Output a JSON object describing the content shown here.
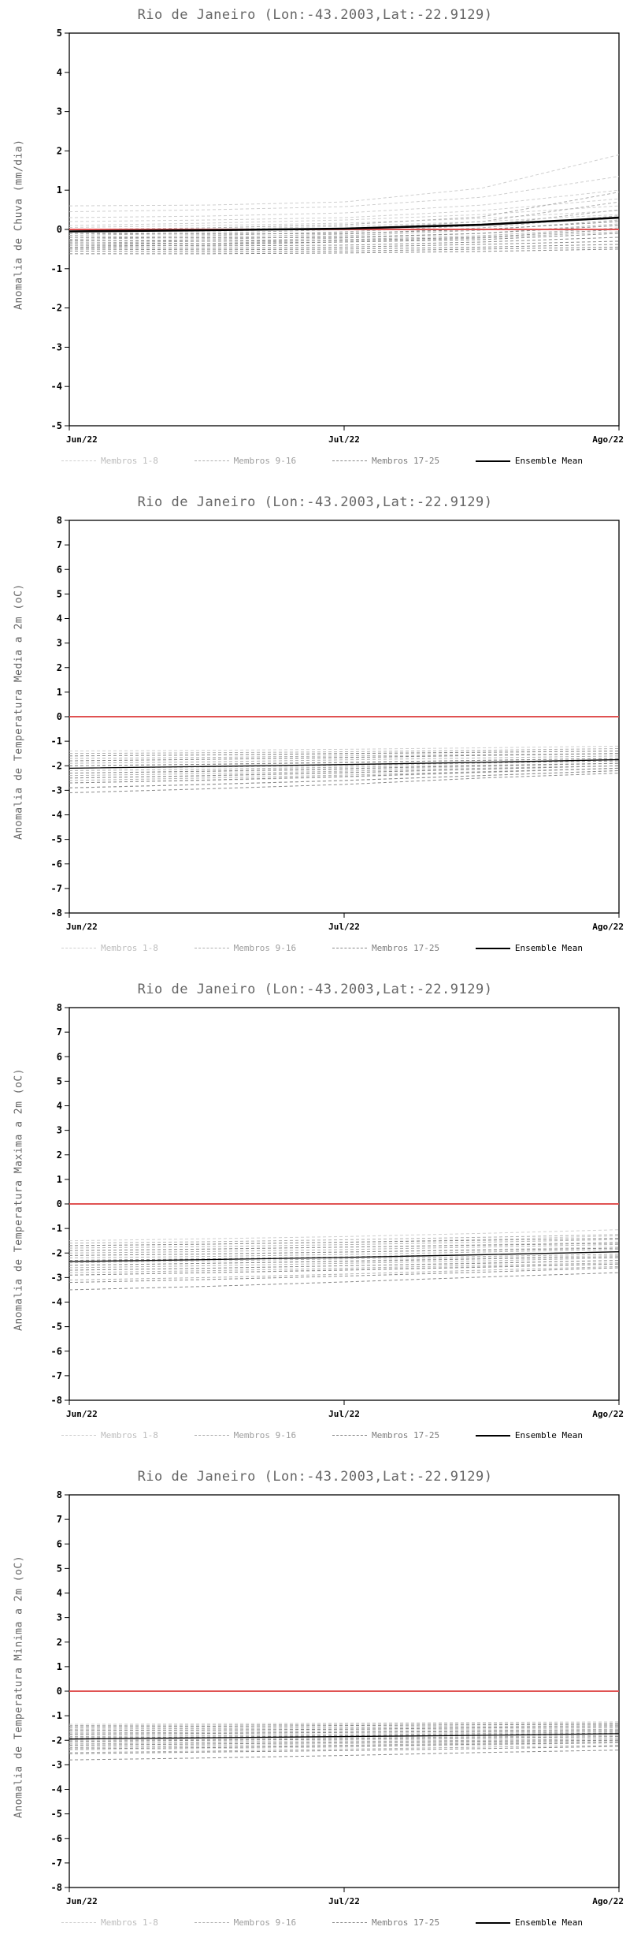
{
  "legend": [
    {
      "label": "Membros 1-8",
      "color": "#cfcfcf",
      "label_color": "#bdbdbd",
      "dashed": true
    },
    {
      "label": "Membros 9-16",
      "color": "#b0b0b0",
      "label_color": "#9e9e9e",
      "dashed": true
    },
    {
      "label": "Membros 17-25",
      "color": "#8a8a8a",
      "label_color": "#7c7c7c",
      "dashed": true
    },
    {
      "label": "Ensemble Mean",
      "color": "#000000",
      "label_color": "#000000",
      "dashed": false
    }
  ],
  "colors": {
    "zero_line": "#e05252",
    "axis": "#000000",
    "mean": "#000000",
    "member_groups": [
      "#cfcfcf",
      "#b0b0b0",
      "#8a8a8a"
    ]
  },
  "chart_data": [
    {
      "type": "line",
      "title": "Rio de Janeiro (Lon:-43.2003,Lat:-22.9129)",
      "ylabel": "Anomalia de Chuva (mm/dia)",
      "xlabel": "",
      "ylim": [
        -5,
        5
      ],
      "ytick_step": 1,
      "xticklabels": [
        "Jun/22",
        "Jul/22",
        "Ago/22"
      ],
      "zero_line": 0,
      "mean_line_width": 2.6,
      "series": {
        "members_1_8": [
          [
            0.6,
            0.62,
            0.7,
            1.05,
            1.9
          ],
          [
            0.45,
            0.5,
            0.58,
            0.82,
            1.35
          ],
          [
            0.3,
            0.34,
            0.42,
            0.62,
            1.0
          ],
          [
            0.2,
            0.24,
            0.3,
            0.48,
            0.78
          ],
          [
            0.1,
            0.16,
            0.24,
            0.38,
            0.6
          ],
          [
            0.05,
            0.1,
            0.16,
            0.28,
            0.48
          ],
          [
            -0.05,
            0.0,
            0.08,
            0.2,
            0.38
          ],
          [
            -0.1,
            -0.06,
            0.04,
            0.14,
            0.3
          ]
        ],
        "members_9_16": [
          [
            0.0,
            0.04,
            0.12,
            0.32,
            0.95
          ],
          [
            -0.15,
            -0.1,
            0.0,
            0.2,
            0.7
          ],
          [
            -0.2,
            -0.16,
            -0.06,
            0.1,
            0.5
          ],
          [
            -0.25,
            -0.2,
            -0.12,
            0.04,
            0.35
          ],
          [
            -0.3,
            -0.26,
            -0.16,
            -0.02,
            0.24
          ],
          [
            -0.35,
            -0.3,
            -0.22,
            -0.1,
            0.14
          ],
          [
            -0.4,
            -0.36,
            -0.26,
            -0.16,
            0.04
          ],
          [
            -0.45,
            -0.4,
            -0.32,
            -0.22,
            -0.06
          ]
        ],
        "members_17_25": [
          [
            -0.1,
            -0.12,
            -0.1,
            0.0,
            0.2
          ],
          [
            -0.2,
            -0.22,
            -0.2,
            -0.1,
            0.1
          ],
          [
            -0.28,
            -0.3,
            -0.28,
            -0.2,
            0.0
          ],
          [
            -0.34,
            -0.36,
            -0.32,
            -0.26,
            -0.1
          ],
          [
            -0.4,
            -0.42,
            -0.4,
            -0.32,
            -0.2
          ],
          [
            -0.46,
            -0.48,
            -0.45,
            -0.38,
            -0.3
          ],
          [
            -0.5,
            -0.52,
            -0.5,
            -0.45,
            -0.38
          ],
          [
            -0.55,
            -0.57,
            -0.55,
            -0.5,
            -0.45
          ],
          [
            -0.62,
            -0.62,
            -0.6,
            -0.56,
            -0.5
          ]
        ],
        "ensemble_mean": [
          -0.05,
          -0.02,
          0.02,
          0.12,
          0.3
        ]
      }
    },
    {
      "type": "line",
      "title": "Rio de Janeiro (Lon:-43.2003,Lat:-22.9129)",
      "ylabel": "Anomalia de Temperatura Media a 2m (oC)",
      "xlabel": "",
      "ylim": [
        -8,
        8
      ],
      "ytick_step": 1,
      "xticklabels": [
        "Jun/22",
        "Jul/22",
        "Ago/22"
      ],
      "zero_line": 0,
      "mean_line_width": 1.3,
      "series": {
        "members_1_8": [
          [
            -1.4,
            -1.37,
            -1.33,
            -1.27,
            -1.2
          ],
          [
            -1.6,
            -1.56,
            -1.52,
            -1.46,
            -1.4
          ],
          [
            -1.8,
            -1.74,
            -1.68,
            -1.58,
            -1.5
          ],
          [
            -2.0,
            -1.95,
            -1.88,
            -1.78,
            -1.7
          ],
          [
            -2.1,
            -2.05,
            -2.0,
            -1.9,
            -1.8
          ],
          [
            -2.3,
            -2.24,
            -2.16,
            -2.04,
            -1.9
          ],
          [
            -2.5,
            -2.42,
            -2.3,
            -2.14,
            -2.0
          ],
          [
            -2.7,
            -2.6,
            -2.46,
            -2.28,
            -2.1
          ]
        ],
        "members_9_16": [
          [
            -1.5,
            -1.47,
            -1.43,
            -1.37,
            -1.3
          ],
          [
            -1.7,
            -1.66,
            -1.6,
            -1.55,
            -1.5
          ],
          [
            -1.9,
            -1.84,
            -1.76,
            -1.68,
            -1.6
          ],
          [
            -2.0,
            -1.94,
            -1.86,
            -1.78,
            -1.7
          ],
          [
            -2.2,
            -2.14,
            -2.06,
            -1.98,
            -1.9
          ],
          [
            -2.4,
            -2.32,
            -2.22,
            -2.1,
            -2.0
          ],
          [
            -2.6,
            -2.5,
            -2.38,
            -2.24,
            -2.1
          ],
          [
            -2.9,
            -2.76,
            -2.6,
            -2.4,
            -2.2
          ]
        ],
        "members_17_25": [
          [
            -1.6,
            -1.56,
            -1.5,
            -1.45,
            -1.4
          ],
          [
            -1.8,
            -1.74,
            -1.66,
            -1.58,
            -1.5
          ],
          [
            -2.0,
            -1.94,
            -1.86,
            -1.78,
            -1.7
          ],
          [
            -2.1,
            -2.04,
            -1.96,
            -1.88,
            -1.8
          ],
          [
            -2.3,
            -2.22,
            -2.12,
            -2.0,
            -1.9
          ],
          [
            -2.5,
            -2.4,
            -2.28,
            -2.14,
            -2.0
          ],
          [
            -2.7,
            -2.58,
            -2.44,
            -2.26,
            -2.1
          ],
          [
            -2.9,
            -2.76,
            -2.6,
            -2.4,
            -2.2
          ],
          [
            -3.1,
            -2.94,
            -2.76,
            -2.5,
            -2.3
          ]
        ],
        "ensemble_mean": [
          -2.1,
          -2.03,
          -1.95,
          -1.86,
          -1.75
        ]
      }
    },
    {
      "type": "line",
      "title": "Rio de Janeiro (Lon:-43.2003,Lat:-22.9129)",
      "ylabel": "Anomalia de Temperatura Maxima a 2m (oC)",
      "xlabel": "",
      "ylim": [
        -8,
        8
      ],
      "ytick_step": 1,
      "xticklabels": [
        "Jun/22",
        "Jul/22",
        "Ago/22"
      ],
      "zero_line": 0,
      "mean_line_width": 1.3,
      "series": {
        "members_1_8": [
          [
            -1.5,
            -1.42,
            -1.33,
            -1.2,
            -1.05
          ],
          [
            -1.7,
            -1.64,
            -1.56,
            -1.45,
            -1.3
          ],
          [
            -1.9,
            -1.84,
            -1.76,
            -1.66,
            -1.55
          ],
          [
            -2.1,
            -2.04,
            -1.96,
            -1.86,
            -1.75
          ],
          [
            -2.3,
            -2.24,
            -2.16,
            -2.06,
            -1.95
          ],
          [
            -2.5,
            -2.42,
            -2.32,
            -2.2,
            -2.1
          ],
          [
            -2.7,
            -2.62,
            -2.52,
            -2.4,
            -2.3
          ],
          [
            -2.9,
            -2.8,
            -2.68,
            -2.55,
            -2.45
          ]
        ],
        "members_9_16": [
          [
            -1.6,
            -1.54,
            -1.46,
            -1.36,
            -1.25
          ],
          [
            -1.8,
            -1.74,
            -1.66,
            -1.56,
            -1.45
          ],
          [
            -2.0,
            -1.94,
            -1.86,
            -1.76,
            -1.65
          ],
          [
            -2.2,
            -2.14,
            -2.06,
            -1.96,
            -1.85
          ],
          [
            -2.4,
            -2.32,
            -2.24,
            -2.14,
            -2.05
          ],
          [
            -2.6,
            -2.52,
            -2.42,
            -2.32,
            -2.2
          ],
          [
            -2.8,
            -2.72,
            -2.62,
            -2.5,
            -2.4
          ],
          [
            -3.1,
            -3.0,
            -2.86,
            -2.7,
            -2.55
          ]
        ],
        "members_17_25": [
          [
            -1.7,
            -1.64,
            -1.56,
            -1.48,
            -1.4
          ],
          [
            -1.9,
            -1.84,
            -1.76,
            -1.68,
            -1.6
          ],
          [
            -2.1,
            -2.04,
            -1.96,
            -1.88,
            -1.8
          ],
          [
            -2.3,
            -2.24,
            -2.16,
            -2.06,
            -1.95
          ],
          [
            -2.5,
            -2.42,
            -2.34,
            -2.24,
            -2.15
          ],
          [
            -2.7,
            -2.62,
            -2.52,
            -2.42,
            -2.3
          ],
          [
            -2.9,
            -2.8,
            -2.7,
            -2.58,
            -2.45
          ],
          [
            -3.2,
            -3.08,
            -2.94,
            -2.78,
            -2.6
          ],
          [
            -3.5,
            -3.36,
            -3.18,
            -2.98,
            -2.8
          ]
        ],
        "ensemble_mean": [
          -2.35,
          -2.27,
          -2.18,
          -2.07,
          -1.95
        ]
      }
    },
    {
      "type": "line",
      "title": "Rio de Janeiro (Lon:-43.2003,Lat:-22.9129)",
      "ylabel": "Anomalia de Temperatura Minima a 2m (oC)",
      "xlabel": "",
      "ylim": [
        -8,
        8
      ],
      "ytick_step": 1,
      "xticklabels": [
        "Jun/22",
        "Jul/22",
        "Ago/22"
      ],
      "zero_line": 0,
      "mean_line_width": 1.3,
      "series": {
        "members_1_8": [
          [
            -1.35,
            -1.33,
            -1.3,
            -1.27,
            -1.25
          ],
          [
            -1.5,
            -1.48,
            -1.45,
            -1.42,
            -1.4
          ],
          [
            -1.65,
            -1.62,
            -1.58,
            -1.55,
            -1.5
          ],
          [
            -1.8,
            -1.77,
            -1.73,
            -1.68,
            -1.6
          ],
          [
            -1.95,
            -1.92,
            -1.88,
            -1.82,
            -1.75
          ],
          [
            -2.1,
            -2.06,
            -2.0,
            -1.95,
            -1.9
          ],
          [
            -2.25,
            -2.2,
            -2.14,
            -2.08,
            -2.0
          ],
          [
            -2.4,
            -2.34,
            -2.28,
            -2.2,
            -2.1
          ]
        ],
        "members_9_16": [
          [
            -1.4,
            -1.38,
            -1.35,
            -1.32,
            -1.3
          ],
          [
            -1.55,
            -1.52,
            -1.5,
            -1.46,
            -1.4
          ],
          [
            -1.7,
            -1.68,
            -1.64,
            -1.6,
            -1.55
          ],
          [
            -1.85,
            -1.82,
            -1.78,
            -1.72,
            -1.65
          ],
          [
            -2.0,
            -1.97,
            -1.92,
            -1.86,
            -1.8
          ],
          [
            -2.15,
            -2.1,
            -2.05,
            -2.0,
            -1.95
          ],
          [
            -2.3,
            -2.25,
            -2.2,
            -2.12,
            -2.05
          ],
          [
            -2.5,
            -2.44,
            -2.36,
            -2.28,
            -2.2
          ]
        ],
        "members_17_25": [
          [
            -1.45,
            -1.43,
            -1.4,
            -1.37,
            -1.35
          ],
          [
            -1.6,
            -1.58,
            -1.55,
            -1.5,
            -1.45
          ],
          [
            -1.75,
            -1.72,
            -1.68,
            -1.64,
            -1.6
          ],
          [
            -1.9,
            -1.87,
            -1.82,
            -1.77,
            -1.7
          ],
          [
            -2.05,
            -2.0,
            -1.96,
            -1.9,
            -1.85
          ],
          [
            -2.2,
            -2.15,
            -2.1,
            -2.04,
            -2.0
          ],
          [
            -2.35,
            -2.3,
            -2.24,
            -2.16,
            -2.1
          ],
          [
            -2.55,
            -2.48,
            -2.42,
            -2.34,
            -2.25
          ],
          [
            -2.8,
            -2.72,
            -2.62,
            -2.5,
            -2.4
          ]
        ],
        "ensemble_mean": [
          -1.95,
          -1.9,
          -1.85,
          -1.8,
          -1.73
        ]
      }
    }
  ]
}
